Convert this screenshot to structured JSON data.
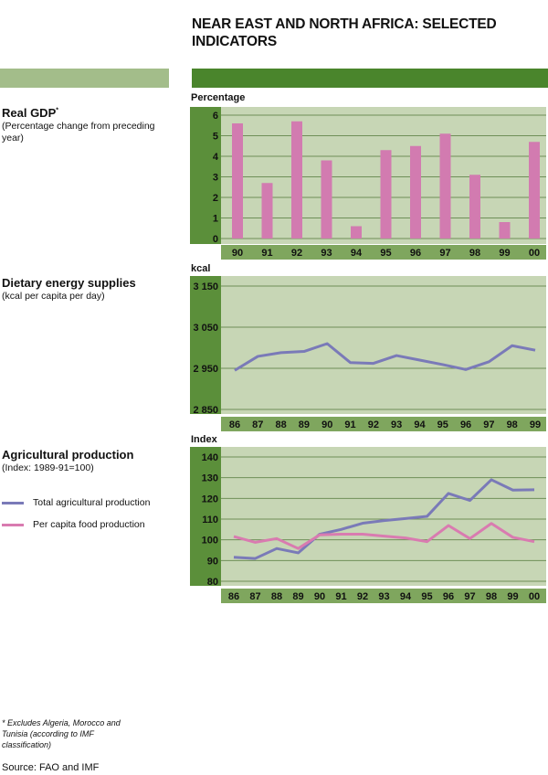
{
  "title": "NEAR EAST AND NORTH AFRICA: SELECTED INDICATORS",
  "colors": {
    "header_left": "#a3bd8a",
    "header_right": "#4a852c",
    "axis_panel": "#5b8f3a",
    "plot_bg": "#c7d6b5",
    "label_bar": "#7fa65e",
    "bar": "#d27bb0",
    "total_line": "#7a7ab8",
    "per_capita_line": "#d97bb0"
  },
  "sections": {
    "gdp": {
      "heading": "Real GDP",
      "marker": "*",
      "subtitle": "(Percentage change from preceding year)"
    },
    "energy": {
      "heading": "Dietary energy supplies",
      "subtitle": "(kcal per capita per day)"
    },
    "agri": {
      "heading": "Agricultural production",
      "subtitle": "(Index: 1989-91=100)",
      "legend": [
        "Total agricultural production",
        "Per capita food production"
      ]
    }
  },
  "chart_data": [
    {
      "type": "bar",
      "title": "Real GDP",
      "ylabel": "Percentage",
      "categories": [
        "90",
        "91",
        "92",
        "93",
        "94",
        "95",
        "96",
        "97",
        "98",
        "99",
        "00"
      ],
      "values": [
        5.6,
        2.7,
        5.7,
        3.8,
        0.6,
        4.3,
        4.5,
        5.1,
        3.1,
        0.8,
        4.7
      ],
      "ylim": [
        0,
        6
      ],
      "yticks": [
        "0",
        "1",
        "2",
        "3",
        "4",
        "5",
        "6"
      ],
      "grid": true
    },
    {
      "type": "line",
      "title": "Dietary energy supplies",
      "ylabel": "kcal",
      "categories": [
        "86",
        "87",
        "88",
        "89",
        "90",
        "91",
        "92",
        "93",
        "94",
        "95",
        "96",
        "97",
        "98",
        "99"
      ],
      "series": [
        {
          "name": "Dietary energy supplies",
          "values": [
            2945,
            2979,
            2988,
            2991,
            3010,
            2964,
            2962,
            2981,
            2970,
            2959,
            2947,
            2966,
            3005,
            2994
          ]
        }
      ],
      "ylim": [
        2850,
        3150
      ],
      "yticks": [
        {
          "v": 2850,
          "l": "2 850"
        },
        {
          "v": 2950,
          "l": "2 950"
        },
        {
          "v": 3050,
          "l": "3 050"
        },
        {
          "v": 3150,
          "l": "3 150"
        }
      ],
      "grid": true
    },
    {
      "type": "line",
      "title": "Agricultural production",
      "ylabel": "Index",
      "categories": [
        "86",
        "87",
        "88",
        "89",
        "90",
        "91",
        "92",
        "93",
        "94",
        "95",
        "96",
        "97",
        "98",
        "99",
        "00"
      ],
      "series": [
        {
          "name": "Total agricultural production",
          "values": [
            91.6,
            91,
            95.8,
            93.7,
            102.7,
            105,
            108,
            109.3,
            110.3,
            111.3,
            122.4,
            119,
            129,
            124,
            124.2
          ]
        },
        {
          "name": "Per capita food production",
          "values": [
            101.6,
            98.8,
            100.6,
            95.8,
            102.4,
            102.7,
            102.7,
            101.8,
            100.9,
            99.1,
            106.9,
            100.6,
            107.9,
            101.2,
            99.1
          ]
        }
      ],
      "ylim": [
        80,
        140
      ],
      "yticks": [
        {
          "v": 80,
          "l": "80"
        },
        {
          "v": 90,
          "l": "90"
        },
        {
          "v": 100,
          "l": "100"
        },
        {
          "v": 110,
          "l": "110"
        },
        {
          "v": 120,
          "l": "120"
        },
        {
          "v": 130,
          "l": "130"
        },
        {
          "v": 140,
          "l": "140"
        }
      ],
      "grid": true
    }
  ],
  "footnote": "* Excludes Algeria, Morocco and Tunisia (according to IMF classification)",
  "source": "Source: FAO and IMF"
}
